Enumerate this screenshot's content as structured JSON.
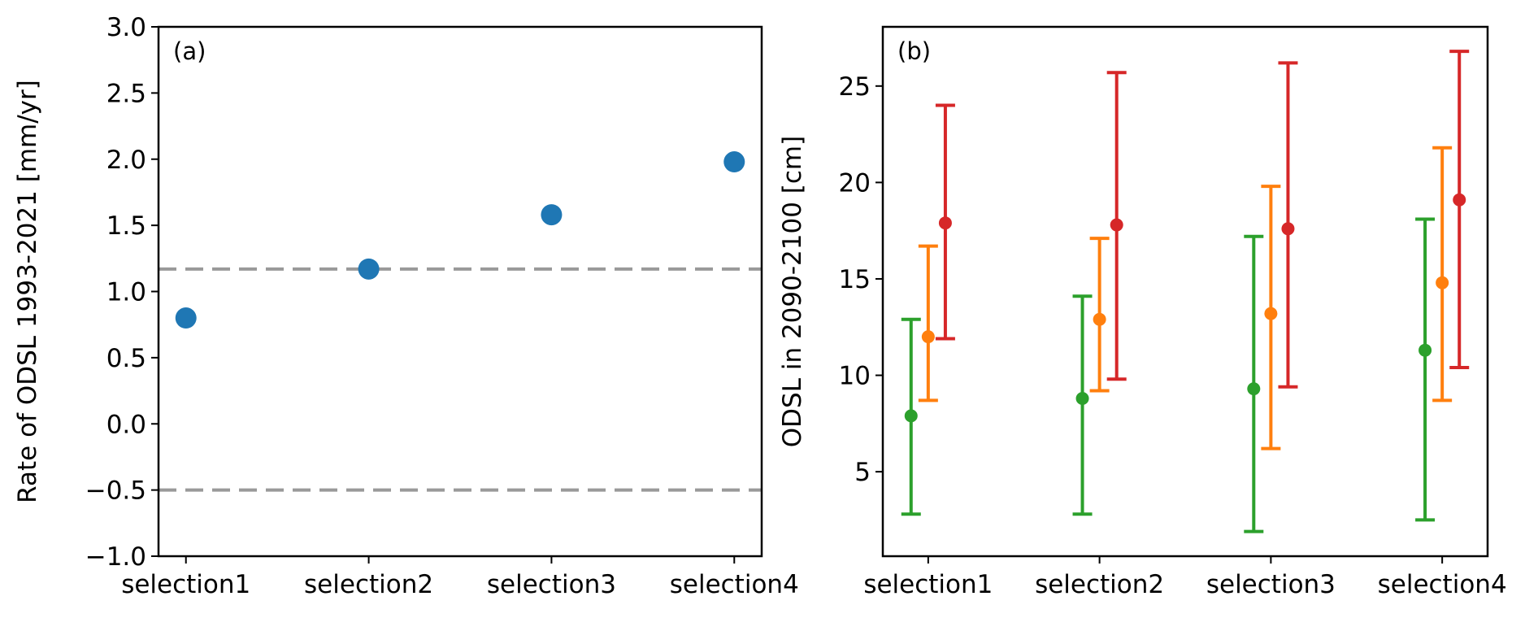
{
  "chart_data": [
    {
      "type": "scatter",
      "panel_label": "(a)",
      "categories": [
        "selection1",
        "selection2",
        "selection3",
        "selection4"
      ],
      "values": [
        0.8,
        1.17,
        1.58,
        1.98
      ],
      "ylabel": "Rate of ODSL 1993-2021 [mm/yr]",
      "xlabel": "",
      "ylim": [
        -1.0,
        3.0
      ],
      "xlim": [
        -0.15,
        3.15
      ],
      "yticks": [
        -1.0,
        -0.5,
        0.0,
        0.5,
        1.0,
        1.5,
        2.0,
        2.5,
        3.0
      ],
      "ytick_labels": [
        "−1.0",
        "−0.5",
        "0.0",
        "0.5",
        "1.0",
        "1.5",
        "2.0",
        "2.5",
        "3.0"
      ],
      "hlines": [
        1.17,
        -0.5
      ],
      "colors": {
        "points": "#1f77b4",
        "hlines": "#999999"
      },
      "grid": false
    },
    {
      "type": "errorbar",
      "panel_label": "(b)",
      "categories": [
        "selection1",
        "selection2",
        "selection3",
        "selection4"
      ],
      "ylabel": "ODSL in 2090-2100 [cm]",
      "xlabel": "",
      "ylim": [
        0.62,
        28.07
      ],
      "xlim": [
        -0.265,
        3.265
      ],
      "yticks": [
        5,
        10,
        15,
        20,
        25
      ],
      "ytick_labels": [
        "5",
        "10",
        "15",
        "20",
        "25"
      ],
      "grid": false,
      "series": [
        {
          "name": "green",
          "color": "#2ca02c",
          "offset": -0.1,
          "values": [
            7.9,
            8.8,
            9.3,
            11.3
          ],
          "lower": [
            2.8,
            2.8,
            1.9,
            2.5
          ],
          "upper": [
            12.9,
            14.1,
            17.2,
            18.1
          ]
        },
        {
          "name": "orange",
          "color": "#ff7f0e",
          "offset": 0.0,
          "values": [
            12.0,
            12.9,
            13.2,
            14.8
          ],
          "lower": [
            8.7,
            9.2,
            6.2,
            8.7
          ],
          "upper": [
            16.7,
            17.1,
            19.8,
            21.8
          ]
        },
        {
          "name": "red",
          "color": "#d62728",
          "offset": 0.1,
          "values": [
            17.9,
            17.8,
            17.6,
            19.1
          ],
          "lower": [
            11.9,
            9.8,
            9.4,
            10.4
          ],
          "upper": [
            24.0,
            25.7,
            26.2,
            26.8
          ]
        }
      ]
    }
  ]
}
